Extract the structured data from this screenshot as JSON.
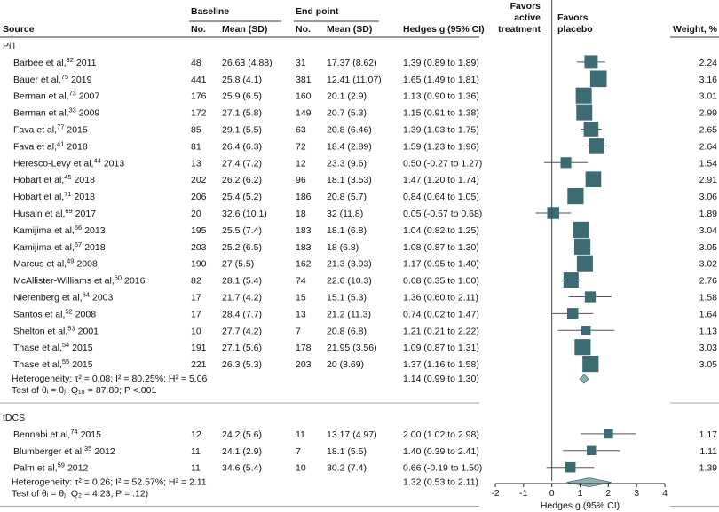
{
  "header": {
    "source": "Source",
    "baseline": "Baseline",
    "endpoint": "End point",
    "no": "No.",
    "mean_sd": "Mean (SD)",
    "hedges_col": "Hedges g (95% CI)",
    "favors_active_1": "Favors",
    "favors_active_2": "active",
    "favors_active_3": "treatment",
    "favors_placebo_1": "Favors",
    "favors_placebo_2": "placebo",
    "weight_col": "Weight, %"
  },
  "colors": {
    "marker": "#3d6b74",
    "diamond": "#8fb0b3",
    "ci_line": "#555555",
    "null_line": "#444444"
  },
  "chart_data": {
    "type": "forest",
    "xlabel": "Hedges g (95% CI)",
    "xlim": [
      -2,
      4
    ],
    "xticks": [
      "-2",
      "-1",
      "0",
      "1",
      "2",
      "3",
      "4"
    ],
    "null_value": 0,
    "groups": [
      {
        "name": "Pill",
        "studies": [
          {
            "author": "Barbee et al,",
            "ref": "32",
            "year": "2011",
            "n_base": "48",
            "mean_base": "26.63 (4.88)",
            "n_end": "31",
            "mean_end": "17.37 (8.62)",
            "ci_text": "1.39 (0.89 to 1.89)",
            "g": 1.39,
            "lo": 0.89,
            "hi": 1.89,
            "weight": "2.24"
          },
          {
            "author": "Bauer et al,",
            "ref": "75",
            "year": "2019",
            "n_base": "441",
            "mean_base": "25.8 (4.1)",
            "n_end": "381",
            "mean_end": "12.41 (11.07)",
            "ci_text": "1.65 (1.49 to 1.81)",
            "g": 1.65,
            "lo": 1.49,
            "hi": 1.81,
            "weight": "3.16"
          },
          {
            "author": "Berman et al,",
            "ref": "73",
            "year": "2007",
            "n_base": "176",
            "mean_base": "25.9 (6.5)",
            "n_end": "160",
            "mean_end": "20.1 (2.9)",
            "ci_text": "1.13 (0.90 to 1.36)",
            "g": 1.13,
            "lo": 0.9,
            "hi": 1.36,
            "weight": "3.01"
          },
          {
            "author": "Berman et al,",
            "ref": "33",
            "year": "2009",
            "n_base": "172",
            "mean_base": "27.1 (5.8)",
            "n_end": "149",
            "mean_end": "20.7 (5.3)",
            "ci_text": "1.15 (0.91 to 1.38)",
            "g": 1.15,
            "lo": 0.91,
            "hi": 1.38,
            "weight": "2.99"
          },
          {
            "author": "Fava et al,",
            "ref": "77",
            "year": "2015",
            "n_base": "85",
            "mean_base": "29.1 (5.5)",
            "n_end": "63",
            "mean_end": "20.8 (6.46)",
            "ci_text": "1.39 (1.03 to 1.75)",
            "g": 1.39,
            "lo": 1.03,
            "hi": 1.75,
            "weight": "2.65"
          },
          {
            "author": "Fava et al,",
            "ref": "41",
            "year": "2018",
            "n_base": "81",
            "mean_base": "26.4 (6.3)",
            "n_end": "72",
            "mean_end": "18.4 (2.89)",
            "ci_text": "1.59 (1.23 to 1.96)",
            "g": 1.59,
            "lo": 1.23,
            "hi": 1.96,
            "weight": "2.64"
          },
          {
            "author": "Heresco-Levy et al,",
            "ref": "44",
            "year": "2013",
            "n_base": "13",
            "mean_base": "27.4 (7.2)",
            "n_end": "12",
            "mean_end": "23.3 (9.6)",
            "ci_text": "0.50 (-0.27 to 1.27)",
            "g": 0.5,
            "lo": -0.27,
            "hi": 1.27,
            "weight": "1.54"
          },
          {
            "author": "Hobart et al,",
            "ref": "45",
            "year": "2018",
            "n_base": "202",
            "mean_base": "26.2 (6.2)",
            "n_end": "96",
            "mean_end": "18.1 (3.53)",
            "ci_text": "1.47 (1.20 to 1.74)",
            "g": 1.47,
            "lo": 1.2,
            "hi": 1.74,
            "weight": "2.91"
          },
          {
            "author": "Hobart et al,",
            "ref": "71",
            "year": "2018",
            "n_base": "206",
            "mean_base": "25.4 (5.2)",
            "n_end": "186",
            "mean_end": "20.8 (5.7)",
            "ci_text": "0.84 (0.64 to 1.05)",
            "g": 0.84,
            "lo": 0.64,
            "hi": 1.05,
            "weight": "3.06"
          },
          {
            "author": "Husain et al,",
            "ref": "69",
            "year": "2017",
            "n_base": "20",
            "mean_base": "32.6 (10.1)",
            "n_end": "18",
            "mean_end": "32 (11.8)",
            "ci_text": "0.05 (-0.57 to 0.68)",
            "g": 0.05,
            "lo": -0.57,
            "hi": 0.68,
            "weight": "1.89"
          },
          {
            "author": "Kamijima et al,",
            "ref": "66",
            "year": "2013",
            "n_base": "195",
            "mean_base": "25.5 (7.4)",
            "n_end": "183",
            "mean_end": "18.1 (6.8)",
            "ci_text": "1.04 (0.82 to 1.25)",
            "g": 1.04,
            "lo": 0.82,
            "hi": 1.25,
            "weight": "3.04"
          },
          {
            "author": "Kamijima et al,",
            "ref": "67",
            "year": "2018",
            "n_base": "203",
            "mean_base": "25.2 (6.5)",
            "n_end": "183",
            "mean_end": "18 (6.8)",
            "ci_text": "1.08 (0.87 to 1.30)",
            "g": 1.08,
            "lo": 0.87,
            "hi": 1.3,
            "weight": "3.05"
          },
          {
            "author": "Marcus et al,",
            "ref": "49",
            "year": "2008",
            "n_base": "190",
            "mean_base": "27 (5.5)",
            "n_end": "162",
            "mean_end": "21.3 (3.93)",
            "ci_text": "1.17 (0.95 to 1.40)",
            "g": 1.17,
            "lo": 0.95,
            "hi": 1.4,
            "weight": "3.02"
          },
          {
            "author": "McAllister-Williams et al,",
            "ref": "50",
            "year": "2016",
            "n_base": "82",
            "mean_base": "28.1 (5.4)",
            "n_end": "74",
            "mean_end": "22.6 (10.3)",
            "ci_text": "0.68 (0.35 to 1.00)",
            "g": 0.68,
            "lo": 0.35,
            "hi": 1.0,
            "weight": "2.76"
          },
          {
            "author": "Nierenberg et al,",
            "ref": "64",
            "year": "2003",
            "n_base": "17",
            "mean_base": "21.7 (4.2)",
            "n_end": "15",
            "mean_end": "15.1 (5.3)",
            "ci_text": "1.36 (0.60 to 2.11)",
            "g": 1.36,
            "lo": 0.6,
            "hi": 2.11,
            "weight": "1.58"
          },
          {
            "author": "Santos et al,",
            "ref": "52",
            "year": "2008",
            "n_base": "17",
            "mean_base": "28.4 (7.7)",
            "n_end": "13",
            "mean_end": "21.2 (11.3)",
            "ci_text": "0.74 (0.02 to 1.47)",
            "g": 0.74,
            "lo": 0.02,
            "hi": 1.47,
            "weight": "1.64"
          },
          {
            "author": "Shelton et al,",
            "ref": "53",
            "year": "2001",
            "n_base": "10",
            "mean_base": "27.7 (4.2)",
            "n_end": "7",
            "mean_end": "20.8 (6.8)",
            "ci_text": "1.21 (0.21 to 2.22)",
            "g": 1.21,
            "lo": 0.21,
            "hi": 2.22,
            "weight": "1.13"
          },
          {
            "author": "Thase et al,",
            "ref": "54",
            "year": "2015",
            "n_base": "191",
            "mean_base": "27.1 (5.6)",
            "n_end": "178",
            "mean_end": "21.95 (3.56)",
            "ci_text": "1.09 (0.87 to 1.31)",
            "g": 1.09,
            "lo": 0.87,
            "hi": 1.31,
            "weight": "3.03"
          },
          {
            "author": "Thase et al,",
            "ref": "55",
            "year": "2015",
            "n_base": "221",
            "mean_base": "26.3 (5.3)",
            "n_end": "203",
            "mean_end": "20 (3.69)",
            "ci_text": "1.37 (1.16 to 1.58)",
            "g": 1.37,
            "lo": 1.16,
            "hi": 1.58,
            "weight": "3.05"
          }
        ],
        "heterogeneity": "Heterogeneity: τ² = 0.08; I² = 80.25%; H² = 5.06",
        "test": "Test of θᵢ = θⱼ: Q₁₈ = 87.80; P <.001",
        "pooled": {
          "ci_text": "1.14 (0.99 to 1.30)",
          "g": 1.14,
          "lo": 0.99,
          "hi": 1.3
        }
      },
      {
        "name": "tDCS",
        "studies": [
          {
            "author": "Bennabi et al,",
            "ref": "74",
            "year": "2015",
            "n_base": "12",
            "mean_base": "24.2 (5.6)",
            "n_end": "11",
            "mean_end": "13.17 (4.97)",
            "ci_text": "2.00 (1.02 to 2.98)",
            "g": 2.0,
            "lo": 1.02,
            "hi": 2.98,
            "weight": "1.17"
          },
          {
            "author": "Blumberger et al,",
            "ref": "35",
            "year": "2012",
            "n_base": "11",
            "mean_base": "24.1 (2.9)",
            "n_end": "7",
            "mean_end": "18.1 (5.5)",
            "ci_text": "1.40 (0.39 to 2.41)",
            "g": 1.4,
            "lo": 0.39,
            "hi": 2.41,
            "weight": "1.11"
          },
          {
            "author": "Palm et al,",
            "ref": "59",
            "year": "2012",
            "n_base": "11",
            "mean_base": "34.6 (5.4)",
            "n_end": "10",
            "mean_end": "30.2 (7.4)",
            "ci_text": "0.66 (-0.19 to 1.50)",
            "g": 0.66,
            "lo": -0.19,
            "hi": 1.5,
            "weight": "1.39"
          }
        ],
        "heterogeneity": "Heterogeneity: τ² = 0.26; I² = 52.57%; H² = 2.11",
        "test": "Test of θᵢ = θⱼ: Q₂ = 4.23; P = .12)",
        "pooled": {
          "ci_text": "1.32 (0.53 to 2.11)",
          "g": 1.32,
          "lo": 0.53,
          "hi": 2.11
        }
      }
    ]
  }
}
